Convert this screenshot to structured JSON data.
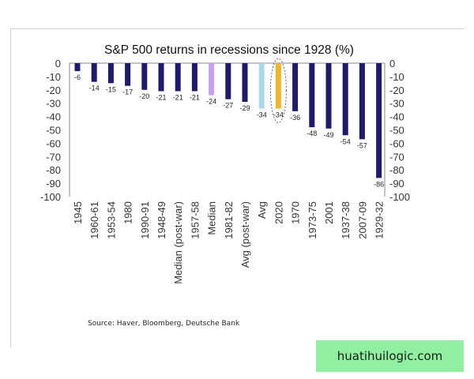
{
  "chart_data": {
    "type": "bar",
    "title": "S&P 500 returns in recessions since 1928 (%)",
    "categories": [
      "1945",
      "1960-61",
      "1953-54",
      "1980",
      "1990-91",
      "1948-49",
      "Median (post-war)",
      "1957-58",
      "Median",
      "1981-82",
      "Avg (post-war)",
      "Avg",
      "2020",
      "1970",
      "1973-75",
      "2001",
      "1937-38",
      "2007-09",
      "1929-32"
    ],
    "values": [
      -6,
      -14,
      -15,
      -17,
      -20,
      -21,
      -21,
      -21,
      -24,
      -27,
      -29,
      -34,
      -34,
      -36,
      -48,
      -49,
      -54,
      -57,
      -86
    ],
    "bar_colors": [
      "#1f1a6e",
      "#1f1a6e",
      "#1f1a6e",
      "#1f1a6e",
      "#1f1a6e",
      "#1f1a6e",
      "#1f1a6e",
      "#1f1a6e",
      "#c9a0ee",
      "#1f1a6e",
      "#1f1a6e",
      "#a9d8e6",
      "#f0b529",
      "#1f1a6e",
      "#1f1a6e",
      "#1f1a6e",
      "#1f1a6e",
      "#1f1a6e",
      "#1f1a6e"
    ],
    "data_labels": [
      "-6",
      "-14",
      "-15",
      "-17",
      "-20",
      "-21",
      "-21",
      "-21",
      "-24",
      "-27",
      "-29",
      "-34",
      "-34",
      "-36",
      "-48",
      "-49",
      "-54",
      "-57",
      "-86"
    ],
    "y_ticks": [
      0,
      -10,
      -20,
      -30,
      -40,
      -50,
      -60,
      -70,
      -80,
      -90,
      -100
    ],
    "y_tick_labels": [
      "0",
      "-10",
      "-20",
      "-30",
      "-40",
      "-50",
      "-60",
      "-70",
      "-80",
      "-90",
      "-100"
    ],
    "ylim": [
      -100,
      0
    ],
    "grid": false,
    "highlight_category": "2020",
    "highlight_style": "dashed-ellipse"
  },
  "source": "Source: Haver, Bloomberg, Deutsche Bank",
  "watermark": "huatihuilogic.com"
}
